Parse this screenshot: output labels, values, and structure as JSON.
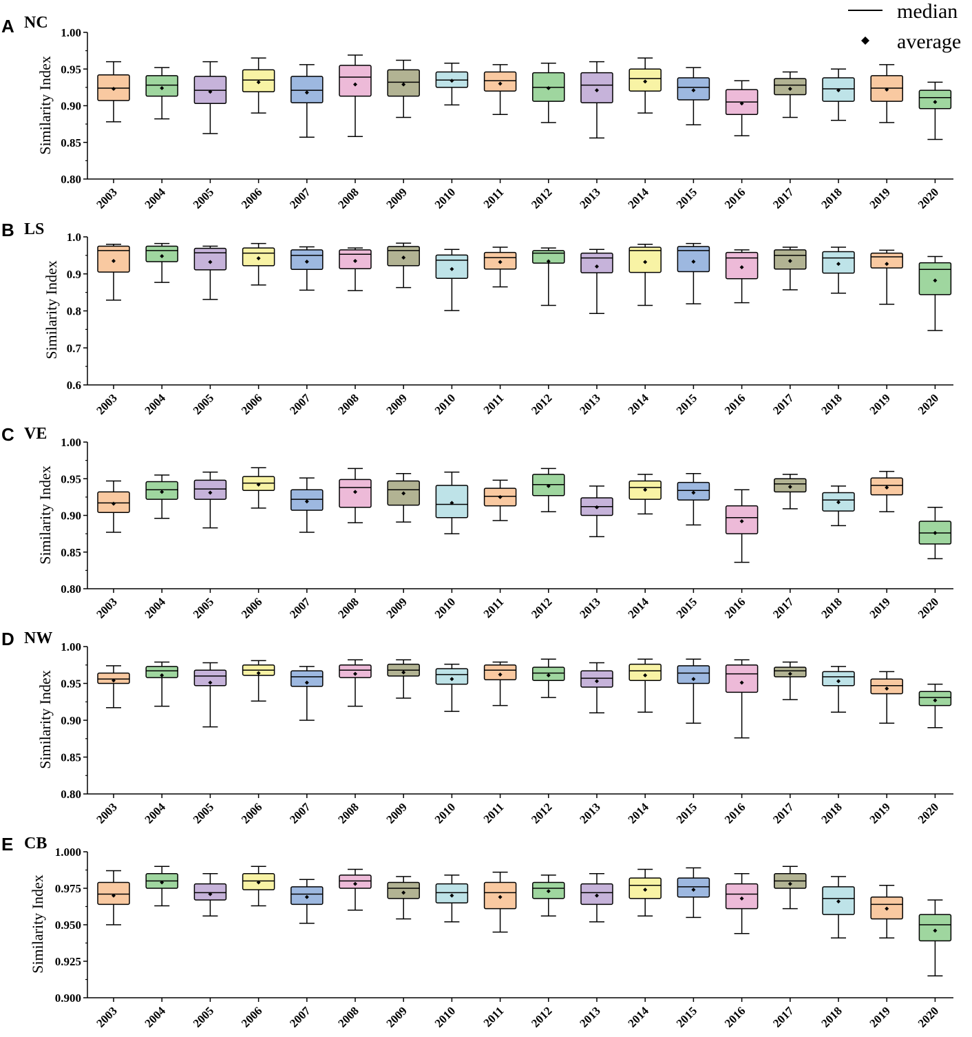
{
  "legend": {
    "median_label": "median",
    "average_label": "average"
  },
  "colors": {
    "orange": "#F9C9A1",
    "green": "#9FD69F",
    "purple": "#C6B3DA",
    "yellow": "#F8F3A5",
    "blue": "#9DB8E0",
    "pink": "#EDBAD8",
    "olive": "#B2B393",
    "cyan": "#BEE3E8"
  },
  "color_sequence": [
    "orange",
    "green",
    "purple",
    "yellow",
    "blue",
    "pink",
    "olive",
    "cyan",
    "orange",
    "green",
    "purple",
    "yellow",
    "blue",
    "pink",
    "olive",
    "cyan",
    "orange",
    "green"
  ],
  "chart_data": [
    {
      "type": "box",
      "panel": "A",
      "title": "NC",
      "ylabel": "Similarity Index",
      "xlabel": "",
      "ylim": [
        0.8,
        1.0
      ],
      "yticks": [
        "0.80",
        "0.85",
        "0.90",
        "0.95",
        "1.00"
      ],
      "categories": [
        "2003",
        "2004",
        "2005",
        "2006",
        "2007",
        "2008",
        "2009",
        "2010",
        "2011",
        "2012",
        "2013",
        "2014",
        "2015",
        "2016",
        "2017",
        "2018",
        "2019",
        "2020"
      ],
      "boxes": [
        {
          "min": 0.878,
          "q1": 0.907,
          "median": 0.924,
          "q3": 0.942,
          "max": 0.96,
          "mean": 0.923
        },
        {
          "min": 0.882,
          "q1": 0.913,
          "median": 0.928,
          "q3": 0.941,
          "max": 0.952,
          "mean": 0.924
        },
        {
          "min": 0.862,
          "q1": 0.903,
          "median": 0.921,
          "q3": 0.94,
          "max": 0.96,
          "mean": 0.919
        },
        {
          "min": 0.89,
          "q1": 0.919,
          "median": 0.935,
          "q3": 0.949,
          "max": 0.965,
          "mean": 0.932
        },
        {
          "min": 0.857,
          "q1": 0.904,
          "median": 0.921,
          "q3": 0.94,
          "max": 0.956,
          "mean": 0.918
        },
        {
          "min": 0.858,
          "q1": 0.913,
          "median": 0.939,
          "q3": 0.955,
          "max": 0.969,
          "mean": 0.929
        },
        {
          "min": 0.884,
          "q1": 0.913,
          "median": 0.932,
          "q3": 0.949,
          "max": 0.962,
          "mean": 0.929
        },
        {
          "min": 0.901,
          "q1": 0.925,
          "median": 0.935,
          "q3": 0.946,
          "max": 0.958,
          "mean": 0.934
        },
        {
          "min": 0.888,
          "q1": 0.92,
          "median": 0.934,
          "q3": 0.946,
          "max": 0.956,
          "mean": 0.93
        },
        {
          "min": 0.877,
          "q1": 0.906,
          "median": 0.925,
          "q3": 0.945,
          "max": 0.958,
          "mean": 0.924
        },
        {
          "min": 0.856,
          "q1": 0.904,
          "median": 0.928,
          "q3": 0.945,
          "max": 0.96,
          "mean": 0.921
        },
        {
          "min": 0.89,
          "q1": 0.92,
          "median": 0.937,
          "q3": 0.95,
          "max": 0.965,
          "mean": 0.933
        },
        {
          "min": 0.874,
          "q1": 0.908,
          "median": 0.925,
          "q3": 0.938,
          "max": 0.952,
          "mean": 0.921
        },
        {
          "min": 0.859,
          "q1": 0.888,
          "median": 0.905,
          "q3": 0.922,
          "max": 0.934,
          "mean": 0.903
        },
        {
          "min": 0.884,
          "q1": 0.915,
          "median": 0.928,
          "q3": 0.937,
          "max": 0.946,
          "mean": 0.923
        },
        {
          "min": 0.88,
          "q1": 0.906,
          "median": 0.923,
          "q3": 0.938,
          "max": 0.95,
          "mean": 0.921
        },
        {
          "min": 0.877,
          "q1": 0.906,
          "median": 0.924,
          "q3": 0.941,
          "max": 0.956,
          "mean": 0.922
        },
        {
          "min": 0.854,
          "q1": 0.896,
          "median": 0.911,
          "q3": 0.921,
          "max": 0.932,
          "mean": 0.905
        }
      ]
    },
    {
      "type": "box",
      "panel": "B",
      "title": "LS",
      "ylabel": "Similarity Index",
      "xlabel": "",
      "ylim": [
        0.6,
        1.0
      ],
      "yticks": [
        "0.6",
        "0.7",
        "0.8",
        "0.9",
        "1.0"
      ],
      "categories": [
        "2003",
        "2004",
        "2005",
        "2006",
        "2007",
        "2008",
        "2009",
        "2010",
        "2011",
        "2012",
        "2013",
        "2014",
        "2015",
        "2016",
        "2017",
        "2018",
        "2019",
        "2020"
      ],
      "boxes": [
        {
          "min": 0.829,
          "q1": 0.905,
          "median": 0.963,
          "q3": 0.975,
          "max": 0.98,
          "mean": 0.935
        },
        {
          "min": 0.877,
          "q1": 0.933,
          "median": 0.963,
          "q3": 0.975,
          "max": 0.982,
          "mean": 0.948
        },
        {
          "min": 0.831,
          "q1": 0.911,
          "median": 0.957,
          "q3": 0.969,
          "max": 0.975,
          "mean": 0.932
        },
        {
          "min": 0.87,
          "q1": 0.922,
          "median": 0.956,
          "q3": 0.97,
          "max": 0.982,
          "mean": 0.942
        },
        {
          "min": 0.856,
          "q1": 0.912,
          "median": 0.95,
          "q3": 0.965,
          "max": 0.973,
          "mean": 0.933
        },
        {
          "min": 0.855,
          "q1": 0.914,
          "median": 0.953,
          "q3": 0.965,
          "max": 0.97,
          "mean": 0.935
        },
        {
          "min": 0.863,
          "q1": 0.922,
          "median": 0.963,
          "q3": 0.974,
          "max": 0.983,
          "mean": 0.944
        },
        {
          "min": 0.801,
          "q1": 0.888,
          "median": 0.937,
          "q3": 0.951,
          "max": 0.966,
          "mean": 0.913
        },
        {
          "min": 0.865,
          "q1": 0.913,
          "median": 0.944,
          "q3": 0.958,
          "max": 0.972,
          "mean": 0.932
        },
        {
          "min": 0.815,
          "q1": 0.929,
          "median": 0.956,
          "q3": 0.963,
          "max": 0.97,
          "mean": 0.934
        },
        {
          "min": 0.793,
          "q1": 0.903,
          "median": 0.943,
          "q3": 0.956,
          "max": 0.966,
          "mean": 0.92
        },
        {
          "min": 0.815,
          "q1": 0.904,
          "median": 0.963,
          "q3": 0.972,
          "max": 0.98,
          "mean": 0.932
        },
        {
          "min": 0.819,
          "q1": 0.906,
          "median": 0.963,
          "q3": 0.974,
          "max": 0.982,
          "mean": 0.933
        },
        {
          "min": 0.822,
          "q1": 0.887,
          "median": 0.943,
          "q3": 0.958,
          "max": 0.965,
          "mean": 0.918
        },
        {
          "min": 0.857,
          "q1": 0.913,
          "median": 0.95,
          "q3": 0.965,
          "max": 0.972,
          "mean": 0.935
        },
        {
          "min": 0.848,
          "q1": 0.902,
          "median": 0.943,
          "q3": 0.96,
          "max": 0.972,
          "mean": 0.927
        },
        {
          "min": 0.818,
          "q1": 0.916,
          "median": 0.946,
          "q3": 0.956,
          "max": 0.964,
          "mean": 0.927
        },
        {
          "min": 0.747,
          "q1": 0.844,
          "median": 0.912,
          "q3": 0.93,
          "max": 0.947,
          "mean": 0.882
        }
      ]
    },
    {
      "type": "box",
      "panel": "C",
      "title": "VE",
      "ylabel": "Similarity Index",
      "xlabel": "",
      "ylim": [
        0.8,
        1.0
      ],
      "yticks": [
        "0.80",
        "0.85",
        "0.90",
        "0.95",
        "1.00"
      ],
      "categories": [
        "2003",
        "2004",
        "2005",
        "2006",
        "2007",
        "2008",
        "2009",
        "2010",
        "2011",
        "2012",
        "2013",
        "2014",
        "2015",
        "2016",
        "2017",
        "2018",
        "2019",
        "2020"
      ],
      "boxes": [
        {
          "min": 0.877,
          "q1": 0.904,
          "median": 0.917,
          "q3": 0.932,
          "max": 0.947,
          "mean": 0.916
        },
        {
          "min": 0.896,
          "q1": 0.922,
          "median": 0.935,
          "q3": 0.946,
          "max": 0.955,
          "mean": 0.932
        },
        {
          "min": 0.883,
          "q1": 0.922,
          "median": 0.936,
          "q3": 0.948,
          "max": 0.959,
          "mean": 0.931
        },
        {
          "min": 0.91,
          "q1": 0.934,
          "median": 0.944,
          "q3": 0.953,
          "max": 0.965,
          "mean": 0.942
        },
        {
          "min": 0.877,
          "q1": 0.907,
          "median": 0.922,
          "q3": 0.935,
          "max": 0.951,
          "mean": 0.919
        },
        {
          "min": 0.89,
          "q1": 0.911,
          "median": 0.938,
          "q3": 0.949,
          "max": 0.964,
          "mean": 0.932
        },
        {
          "min": 0.891,
          "q1": 0.914,
          "median": 0.935,
          "q3": 0.947,
          "max": 0.957,
          "mean": 0.93
        },
        {
          "min": 0.875,
          "q1": 0.897,
          "median": 0.915,
          "q3": 0.941,
          "max": 0.959,
          "mean": 0.917
        },
        {
          "min": 0.893,
          "q1": 0.913,
          "median": 0.926,
          "q3": 0.937,
          "max": 0.948,
          "mean": 0.925
        },
        {
          "min": 0.905,
          "q1": 0.927,
          "median": 0.942,
          "q3": 0.956,
          "max": 0.964,
          "mean": 0.94
        },
        {
          "min": 0.871,
          "q1": 0.9,
          "median": 0.912,
          "q3": 0.924,
          "max": 0.94,
          "mean": 0.911
        },
        {
          "min": 0.902,
          "q1": 0.922,
          "median": 0.938,
          "q3": 0.947,
          "max": 0.956,
          "mean": 0.935
        },
        {
          "min": 0.887,
          "q1": 0.921,
          "median": 0.934,
          "q3": 0.945,
          "max": 0.957,
          "mean": 0.931
        },
        {
          "min": 0.836,
          "q1": 0.875,
          "median": 0.897,
          "q3": 0.913,
          "max": 0.935,
          "mean": 0.892
        },
        {
          "min": 0.909,
          "q1": 0.932,
          "median": 0.943,
          "q3": 0.95,
          "max": 0.956,
          "mean": 0.939
        },
        {
          "min": 0.886,
          "q1": 0.906,
          "median": 0.921,
          "q3": 0.931,
          "max": 0.94,
          "mean": 0.918
        },
        {
          "min": 0.905,
          "q1": 0.928,
          "median": 0.941,
          "q3": 0.951,
          "max": 0.96,
          "mean": 0.938
        },
        {
          "min": 0.841,
          "q1": 0.861,
          "median": 0.876,
          "q3": 0.892,
          "max": 0.911,
          "mean": 0.876
        }
      ]
    },
    {
      "type": "box",
      "panel": "D",
      "title": "NW",
      "ylabel": "Similarity Index",
      "xlabel": "",
      "ylim": [
        0.8,
        1.0
      ],
      "yticks": [
        "0.80",
        "0.85",
        "0.90",
        "0.95",
        "1.00"
      ],
      "categories": [
        "2003",
        "2004",
        "2005",
        "2006",
        "2007",
        "2008",
        "2009",
        "2010",
        "2011",
        "2012",
        "2013",
        "2014",
        "2015",
        "2016",
        "2017",
        "2018",
        "2019",
        "2020"
      ],
      "boxes": [
        {
          "min": 0.917,
          "q1": 0.95,
          "median": 0.956,
          "q3": 0.964,
          "max": 0.974,
          "mean": 0.954
        },
        {
          "min": 0.919,
          "q1": 0.958,
          "median": 0.967,
          "q3": 0.973,
          "max": 0.979,
          "mean": 0.961
        },
        {
          "min": 0.891,
          "q1": 0.947,
          "median": 0.96,
          "q3": 0.968,
          "max": 0.978,
          "mean": 0.951
        },
        {
          "min": 0.926,
          "q1": 0.961,
          "median": 0.968,
          "q3": 0.975,
          "max": 0.981,
          "mean": 0.964
        },
        {
          "min": 0.9,
          "q1": 0.946,
          "median": 0.959,
          "q3": 0.967,
          "max": 0.973,
          "mean": 0.951
        },
        {
          "min": 0.919,
          "q1": 0.958,
          "median": 0.968,
          "q3": 0.975,
          "max": 0.982,
          "mean": 0.963
        },
        {
          "min": 0.93,
          "q1": 0.96,
          "median": 0.968,
          "q3": 0.976,
          "max": 0.982,
          "mean": 0.965
        },
        {
          "min": 0.912,
          "q1": 0.949,
          "median": 0.962,
          "q3": 0.97,
          "max": 0.976,
          "mean": 0.956
        },
        {
          "min": 0.92,
          "q1": 0.955,
          "median": 0.968,
          "q3": 0.975,
          "max": 0.979,
          "mean": 0.962
        },
        {
          "min": 0.931,
          "q1": 0.954,
          "median": 0.964,
          "q3": 0.972,
          "max": 0.983,
          "mean": 0.961
        },
        {
          "min": 0.91,
          "q1": 0.945,
          "median": 0.957,
          "q3": 0.967,
          "max": 0.978,
          "mean": 0.953
        },
        {
          "min": 0.911,
          "q1": 0.954,
          "median": 0.967,
          "q3": 0.976,
          "max": 0.983,
          "mean": 0.961
        },
        {
          "min": 0.896,
          "q1": 0.95,
          "median": 0.964,
          "q3": 0.974,
          "max": 0.983,
          "mean": 0.956
        },
        {
          "min": 0.876,
          "q1": 0.938,
          "median": 0.963,
          "q3": 0.975,
          "max": 0.982,
          "mean": 0.951
        },
        {
          "min": 0.928,
          "q1": 0.959,
          "median": 0.967,
          "q3": 0.972,
          "max": 0.979,
          "mean": 0.963
        },
        {
          "min": 0.911,
          "q1": 0.947,
          "median": 0.959,
          "q3": 0.966,
          "max": 0.973,
          "mean": 0.953
        },
        {
          "min": 0.896,
          "q1": 0.936,
          "median": 0.947,
          "q3": 0.956,
          "max": 0.966,
          "mean": 0.943
        },
        {
          "min": 0.89,
          "q1": 0.92,
          "median": 0.931,
          "q3": 0.939,
          "max": 0.949,
          "mean": 0.927
        }
      ]
    },
    {
      "type": "box",
      "panel": "E",
      "title": "CB",
      "ylabel": "Similarity Index",
      "xlabel": "",
      "ylim": [
        0.9,
        1.0
      ],
      "yticks": [
        "0.900",
        "0.925",
        "0.950",
        "0.975",
        "1.000"
      ],
      "categories": [
        "2003",
        "2004",
        "2005",
        "2006",
        "2007",
        "2008",
        "2009",
        "2010",
        "2011",
        "2012",
        "2013",
        "2014",
        "2015",
        "2016",
        "2017",
        "2018",
        "2019",
        "2020"
      ],
      "boxes": [
        {
          "min": 0.95,
          "q1": 0.964,
          "median": 0.971,
          "q3": 0.979,
          "max": 0.987,
          "mean": 0.97
        },
        {
          "min": 0.963,
          "q1": 0.975,
          "median": 0.98,
          "q3": 0.985,
          "max": 0.99,
          "mean": 0.979
        },
        {
          "min": 0.956,
          "q1": 0.967,
          "median": 0.972,
          "q3": 0.978,
          "max": 0.985,
          "mean": 0.971
        },
        {
          "min": 0.963,
          "q1": 0.974,
          "median": 0.98,
          "q3": 0.985,
          "max": 0.99,
          "mean": 0.979
        },
        {
          "min": 0.951,
          "q1": 0.964,
          "median": 0.971,
          "q3": 0.976,
          "max": 0.981,
          "mean": 0.969
        },
        {
          "min": 0.96,
          "q1": 0.975,
          "median": 0.98,
          "q3": 0.984,
          "max": 0.988,
          "mean": 0.978
        },
        {
          "min": 0.954,
          "q1": 0.968,
          "median": 0.975,
          "q3": 0.979,
          "max": 0.983,
          "mean": 0.972
        },
        {
          "min": 0.952,
          "q1": 0.965,
          "median": 0.972,
          "q3": 0.978,
          "max": 0.984,
          "mean": 0.97
        },
        {
          "min": 0.945,
          "q1": 0.961,
          "median": 0.972,
          "q3": 0.979,
          "max": 0.986,
          "mean": 0.969
        },
        {
          "min": 0.956,
          "q1": 0.968,
          "median": 0.975,
          "q3": 0.979,
          "max": 0.984,
          "mean": 0.973
        },
        {
          "min": 0.952,
          "q1": 0.964,
          "median": 0.972,
          "q3": 0.978,
          "max": 0.985,
          "mean": 0.97
        },
        {
          "min": 0.956,
          "q1": 0.968,
          "median": 0.977,
          "q3": 0.982,
          "max": 0.988,
          "mean": 0.974
        },
        {
          "min": 0.955,
          "q1": 0.969,
          "median": 0.976,
          "q3": 0.982,
          "max": 0.989,
          "mean": 0.974
        },
        {
          "min": 0.944,
          "q1": 0.961,
          "median": 0.971,
          "q3": 0.978,
          "max": 0.985,
          "mean": 0.968
        },
        {
          "min": 0.961,
          "q1": 0.975,
          "median": 0.98,
          "q3": 0.985,
          "max": 0.99,
          "mean": 0.978
        },
        {
          "min": 0.941,
          "q1": 0.957,
          "median": 0.968,
          "q3": 0.976,
          "max": 0.983,
          "mean": 0.966
        },
        {
          "min": 0.941,
          "q1": 0.954,
          "median": 0.964,
          "q3": 0.969,
          "max": 0.977,
          "mean": 0.961
        },
        {
          "min": 0.915,
          "q1": 0.939,
          "median": 0.95,
          "q3": 0.957,
          "max": 0.967,
          "mean": 0.946
        }
      ]
    }
  ]
}
